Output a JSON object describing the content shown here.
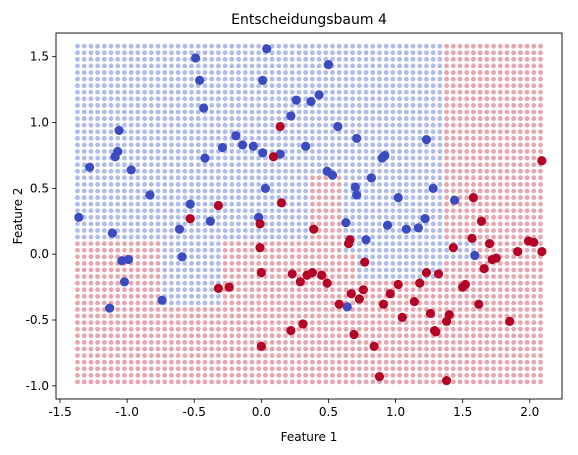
{
  "chart_data": {
    "type": "scatter",
    "title": "Entscheidungsbaum 4",
    "xlabel": "Feature 1",
    "ylabel": "Feature 2",
    "xlim": [
      -1.53,
      2.24
    ],
    "ylim": [
      -1.1,
      1.68
    ],
    "xticks": [
      "-1.5",
      "-1.0",
      "-0.5",
      "0.0",
      "0.5",
      "1.0",
      "1.5",
      "2.0"
    ],
    "yticks": [
      "-1.0",
      "-0.5",
      "0.0",
      "0.5",
      "1.0",
      "1.5"
    ],
    "grid": false,
    "legend": "none",
    "colors": {
      "class0": "#3b4cc0",
      "class1": "#b40426",
      "region0": "#8d9fe3",
      "region1": "#dd7f8b"
    },
    "decision_grid": {
      "x_range": [
        -1.37,
        2.09
      ],
      "y_range": [
        -0.97,
        1.58
      ],
      "steps": 0.05,
      "class0_regions": [
        [
          -1.5,
          0.35,
          0.1,
          2.0
        ],
        [
          0.1,
          0.6,
          0.6,
          2.0
        ],
        [
          0.6,
          0.7,
          0.0,
          2.0
        ],
        [
          0.7,
          1.35,
          -0.18,
          0.55
        ],
        [
          0.7,
          1.35,
          0.55,
          2.0
        ],
        [
          -0.3,
          0.1,
          0.35,
          0.7
        ],
        [
          -0.75,
          -0.3,
          -0.4,
          0.35
        ],
        [
          -1.5,
          -0.75,
          0.1,
          0.35
        ],
        [
          1.35,
          1.6,
          -0.05,
          0.1
        ]
      ]
    },
    "series": [
      {
        "class": 0,
        "points": [
          [
            -1.36,
            0.28
          ],
          [
            -1.28,
            0.66
          ],
          [
            -1.13,
            -0.41
          ],
          [
            -1.11,
            0.16
          ],
          [
            -1.09,
            0.74
          ],
          [
            -1.07,
            0.78
          ],
          [
            -1.06,
            0.94
          ],
          [
            -1.04,
            -0.05
          ],
          [
            -1.02,
            -0.21
          ],
          [
            -0.99,
            -0.04
          ],
          [
            -0.97,
            0.64
          ],
          [
            -0.83,
            0.45
          ],
          [
            -0.74,
            -0.35
          ],
          [
            -0.61,
            0.19
          ],
          [
            -0.59,
            -0.02
          ],
          [
            -0.53,
            0.38
          ],
          [
            -0.49,
            1.49
          ],
          [
            -0.46,
            1.32
          ],
          [
            -0.43,
            1.11
          ],
          [
            -0.42,
            0.73
          ],
          [
            -0.38,
            0.25
          ],
          [
            -0.29,
            0.81
          ],
          [
            -0.19,
            0.9
          ],
          [
            -0.14,
            0.83
          ],
          [
            -0.06,
            0.82
          ],
          [
            -0.02,
            0.28
          ],
          [
            0.01,
            1.32
          ],
          [
            0.01,
            0.77
          ],
          [
            0.03,
            0.5
          ],
          [
            0.04,
            1.56
          ],
          [
            0.14,
            0.76
          ],
          [
            0.22,
            1.05
          ],
          [
            0.26,
            1.17
          ],
          [
            0.33,
            0.82
          ],
          [
            0.37,
            1.16
          ],
          [
            0.43,
            1.21
          ],
          [
            0.49,
            0.63
          ],
          [
            0.5,
            1.44
          ],
          [
            0.53,
            0.6
          ],
          [
            0.57,
            0.97
          ],
          [
            0.63,
            0.24
          ],
          [
            0.64,
            -0.4
          ],
          [
            0.7,
            0.51
          ],
          [
            0.71,
            0.45
          ],
          [
            0.71,
            0.88
          ],
          [
            0.78,
            0.11
          ],
          [
            0.82,
            0.58
          ],
          [
            0.9,
            0.73
          ],
          [
            0.92,
            0.75
          ],
          [
            0.94,
            0.22
          ],
          [
            1.02,
            0.43
          ],
          [
            1.08,
            0.19
          ],
          [
            1.17,
            0.2
          ],
          [
            1.22,
            0.27
          ],
          [
            1.23,
            0.87
          ],
          [
            1.28,
            0.5
          ],
          [
            1.44,
            0.41
          ],
          [
            1.59,
            -0.01
          ]
        ]
      },
      {
        "class": 1,
        "points": [
          [
            -0.53,
            0.27
          ],
          [
            -0.32,
            0.37
          ],
          [
            -0.32,
            -0.26
          ],
          [
            -0.24,
            -0.25
          ],
          [
            -0.01,
            0.23
          ],
          [
            -0.01,
            0.05
          ],
          [
            0.0,
            -0.14
          ],
          [
            0.0,
            -0.7
          ],
          [
            0.09,
            0.74
          ],
          [
            0.14,
            0.97
          ],
          [
            0.15,
            0.39
          ],
          [
            0.22,
            -0.58
          ],
          [
            0.23,
            -0.15
          ],
          [
            0.29,
            -0.21
          ],
          [
            0.31,
            -0.53
          ],
          [
            0.34,
            -0.16
          ],
          [
            0.38,
            -0.14
          ],
          [
            0.39,
            0.19
          ],
          [
            0.45,
            -0.16
          ],
          [
            0.49,
            -0.22
          ],
          [
            0.58,
            -0.38
          ],
          [
            0.65,
            0.08
          ],
          [
            0.66,
            0.11
          ],
          [
            0.67,
            -0.3
          ],
          [
            0.69,
            -0.61
          ],
          [
            0.73,
            -0.34
          ],
          [
            0.76,
            -0.27
          ],
          [
            0.77,
            -0.06
          ],
          [
            0.84,
            -0.7
          ],
          [
            0.88,
            -0.93
          ],
          [
            0.91,
            -0.38
          ],
          [
            0.96,
            -0.3
          ],
          [
            1.02,
            -0.23
          ],
          [
            1.05,
            -0.48
          ],
          [
            1.14,
            -0.36
          ],
          [
            1.18,
            -0.22
          ],
          [
            1.23,
            -0.14
          ],
          [
            1.26,
            -0.45
          ],
          [
            1.29,
            -0.58
          ],
          [
            1.3,
            -0.59
          ],
          [
            1.32,
            -0.15
          ],
          [
            1.38,
            -0.96
          ],
          [
            1.38,
            -0.51
          ],
          [
            1.4,
            -0.46
          ],
          [
            1.43,
            0.05
          ],
          [
            1.5,
            -0.25
          ],
          [
            1.52,
            -0.23
          ],
          [
            1.57,
            0.12
          ],
          [
            1.58,
            0.43
          ],
          [
            1.62,
            -0.38
          ],
          [
            1.64,
            0.25
          ],
          [
            1.66,
            -0.11
          ],
          [
            1.7,
            0.08
          ],
          [
            1.72,
            -0.04
          ],
          [
            1.75,
            -0.03
          ],
          [
            1.85,
            -0.51
          ],
          [
            1.91,
            0.02
          ],
          [
            1.99,
            0.1
          ],
          [
            2.03,
            0.09
          ],
          [
            2.09,
            0.02
          ],
          [
            2.09,
            0.71
          ]
        ]
      }
    ]
  }
}
